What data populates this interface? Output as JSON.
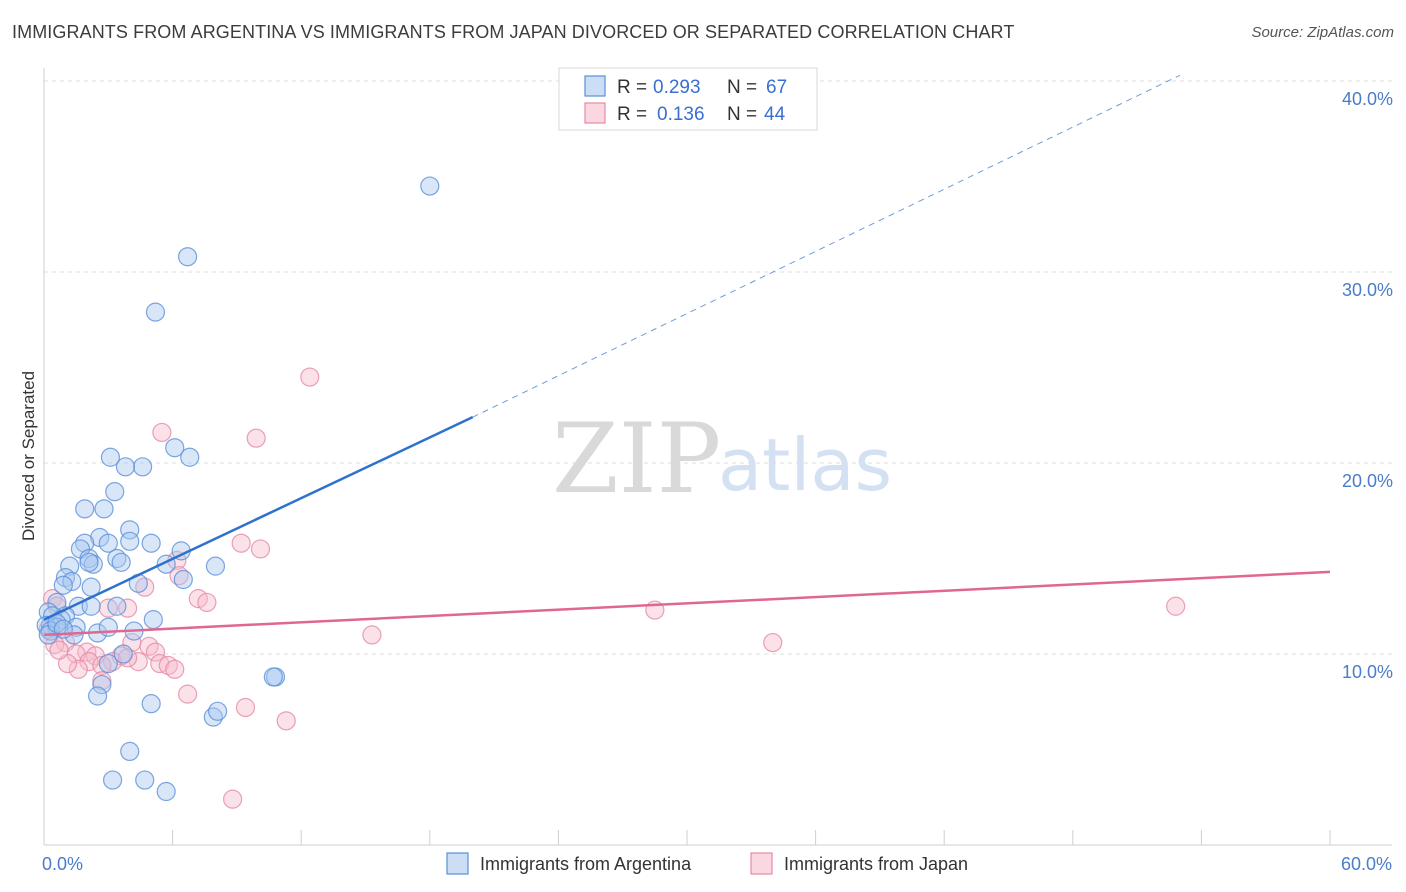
{
  "header": {
    "title": "IMMIGRANTS FROM ARGENTINA VS IMMIGRANTS FROM JAPAN DIVORCED OR SEPARATED CORRELATION CHART",
    "source": "Source: ZipAtlas.com"
  },
  "watermark": {
    "zip": "ZIP",
    "atlas": "atlas"
  },
  "legend_top": {
    "rows": [
      {
        "r_label": "R =",
        "r_value": "0.293",
        "n_label": "N =",
        "n_value": "67"
      },
      {
        "r_label": "R =",
        "r_value": "0.136",
        "n_label": "N =",
        "n_value": "44"
      }
    ]
  },
  "colors": {
    "argentina_fill": "#a9c8ef",
    "argentina_stroke": "#5b90d8",
    "argentina_line": "#2f72cc",
    "japan_fill": "#f6bccd",
    "japan_stroke": "#e58aa6",
    "japan_line": "#e06890",
    "grid": "#dddddd"
  },
  "chart_data": {
    "type": "scatter",
    "title": "IMMIGRANTS FROM ARGENTINA VS IMMIGRANTS FROM JAPAN DIVORCED OR SEPARATED CORRELATION CHART",
    "xlabel": "",
    "ylabel": "Divorced or Separated",
    "xlim": [
      0,
      60
    ],
    "ylim": [
      0,
      40
    ],
    "x_tick_labels": [
      "0.0%",
      "60.0%"
    ],
    "y_ticks": [
      10,
      20,
      30,
      40
    ],
    "y_tick_labels": [
      "10.0%",
      "20.0%",
      "30.0%",
      "40.0%"
    ],
    "legend_position": "top-center",
    "series": [
      {
        "name": "Immigrants from Argentina",
        "R": 0.293,
        "N": 67,
        "trend": {
          "x0": 0,
          "y0": 11.8,
          "x1": 20,
          "y1": 22.4,
          "dashed_to_x": 53,
          "dashed_to_y": 40.3
        },
        "points": [
          [
            18.0,
            34.5
          ],
          [
            6.7,
            30.8
          ],
          [
            5.2,
            27.9
          ],
          [
            6.1,
            20.8
          ],
          [
            3.1,
            20.3
          ],
          [
            4.6,
            19.8
          ],
          [
            3.8,
            19.8
          ],
          [
            6.8,
            20.3
          ],
          [
            3.3,
            18.5
          ],
          [
            1.9,
            17.6
          ],
          [
            2.8,
            17.6
          ],
          [
            4.0,
            16.5
          ],
          [
            4.0,
            15.9
          ],
          [
            5.0,
            15.8
          ],
          [
            2.6,
            16.1
          ],
          [
            3.0,
            15.8
          ],
          [
            1.9,
            15.8
          ],
          [
            1.7,
            15.5
          ],
          [
            6.4,
            15.4
          ],
          [
            2.1,
            15.0
          ],
          [
            3.4,
            15.0
          ],
          [
            3.6,
            14.8
          ],
          [
            2.3,
            14.7
          ],
          [
            5.7,
            14.7
          ],
          [
            8.0,
            14.6
          ],
          [
            1.2,
            14.6
          ],
          [
            2.1,
            14.8
          ],
          [
            1.0,
            14.0
          ],
          [
            6.5,
            13.9
          ],
          [
            1.3,
            13.8
          ],
          [
            4.4,
            13.7
          ],
          [
            0.9,
            13.6
          ],
          [
            2.2,
            13.5
          ],
          [
            0.6,
            12.7
          ],
          [
            1.6,
            12.5
          ],
          [
            2.2,
            12.5
          ],
          [
            3.4,
            12.5
          ],
          [
            0.2,
            12.2
          ],
          [
            1.0,
            12.0
          ],
          [
            0.4,
            12.0
          ],
          [
            0.8,
            11.8
          ],
          [
            0.3,
            11.5
          ],
          [
            1.5,
            11.4
          ],
          [
            0.1,
            11.5
          ],
          [
            0.6,
            11.4
          ],
          [
            0.3,
            11.2
          ],
          [
            0.2,
            11.0
          ],
          [
            1.4,
            11.0
          ],
          [
            2.5,
            11.1
          ],
          [
            3.0,
            11.4
          ],
          [
            4.2,
            11.2
          ],
          [
            5.1,
            11.8
          ],
          [
            0.6,
            11.6
          ],
          [
            0.9,
            11.3
          ],
          [
            3.0,
            9.5
          ],
          [
            3.7,
            10.0
          ],
          [
            2.7,
            8.4
          ],
          [
            2.5,
            7.8
          ],
          [
            5.0,
            7.4
          ],
          [
            10.8,
            8.8
          ],
          [
            10.7,
            8.8
          ],
          [
            7.9,
            6.7
          ],
          [
            8.1,
            7.0
          ],
          [
            4.0,
            4.9
          ],
          [
            3.2,
            3.4
          ],
          [
            4.7,
            3.4
          ],
          [
            5.7,
            2.8
          ]
        ]
      },
      {
        "name": "Immigrants from Japan",
        "R": 0.136,
        "N": 44,
        "trend": {
          "x0": 0,
          "y0": 11.0,
          "x1": 60,
          "y1": 14.3
        },
        "points": [
          [
            12.4,
            24.5
          ],
          [
            5.5,
            21.6
          ],
          [
            9.9,
            21.3
          ],
          [
            9.2,
            15.8
          ],
          [
            10.1,
            15.5
          ],
          [
            6.2,
            14.9
          ],
          [
            6.3,
            14.1
          ],
          [
            4.7,
            13.5
          ],
          [
            7.2,
            12.9
          ],
          [
            7.6,
            12.7
          ],
          [
            3.0,
            12.4
          ],
          [
            3.9,
            12.4
          ],
          [
            28.5,
            12.3
          ],
          [
            52.8,
            12.5
          ],
          [
            0.4,
            12.9
          ],
          [
            0.6,
            12.5
          ],
          [
            15.3,
            11.0
          ],
          [
            34.0,
            10.6
          ],
          [
            1.0,
            10.6
          ],
          [
            2.0,
            10.1
          ],
          [
            4.1,
            10.6
          ],
          [
            4.9,
            10.4
          ],
          [
            5.2,
            10.1
          ],
          [
            1.5,
            10.0
          ],
          [
            2.4,
            9.9
          ],
          [
            3.6,
            9.9
          ],
          [
            3.2,
            9.6
          ],
          [
            4.4,
            9.6
          ],
          [
            5.4,
            9.5
          ],
          [
            5.8,
            9.4
          ],
          [
            6.1,
            9.2
          ],
          [
            2.1,
            9.6
          ],
          [
            2.7,
            9.4
          ],
          [
            1.6,
            9.2
          ],
          [
            1.1,
            9.5
          ],
          [
            0.5,
            10.5
          ],
          [
            0.7,
            10.2
          ],
          [
            2.7,
            8.6
          ],
          [
            6.7,
            7.9
          ],
          [
            9.4,
            7.2
          ],
          [
            11.3,
            6.5
          ],
          [
            8.8,
            2.4
          ],
          [
            0.2,
            11.3
          ],
          [
            3.9,
            9.8
          ]
        ]
      }
    ]
  }
}
